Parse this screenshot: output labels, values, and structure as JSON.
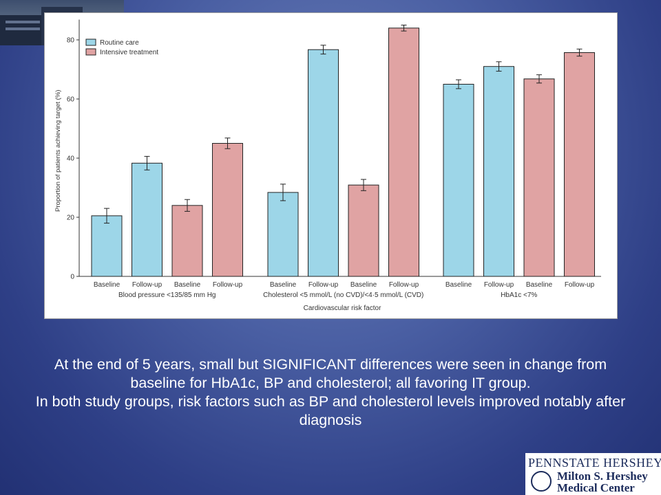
{
  "caption": {
    "line1": "At the end of 5 years, small but SIGNIFICANT differences were seen in change from baseline for HbA1c, BP and cholesterol; all favoring IT group.",
    "line2": "In both study groups, risk factors such as BP and cholesterol levels improved notably after diagnosis"
  },
  "logo": {
    "line1": "PENNSTATE HERSHEY",
    "line2": "Milton S. Hershey",
    "line3": "Medical Center"
  },
  "chart_data": {
    "type": "bar",
    "xlabel": "Cardiovascular risk factor",
    "ylabel": "Proportion of patients achieving target (%)",
    "ylim": [
      0,
      85
    ],
    "yticks": [
      0,
      20,
      40,
      60,
      80
    ],
    "legend": {
      "position": "top-left",
      "entries": [
        {
          "name": "Routine care",
          "color": "#9dd6e8"
        },
        {
          "name": "Intensive treatment",
          "color": "#e0a3a3"
        }
      ]
    },
    "groups": [
      {
        "label": "Blood pressure <135/85 mm Hg",
        "bars": [
          {
            "label": "Baseline",
            "series": "Routine care",
            "value": 20.5,
            "err": 2.5
          },
          {
            "label": "Follow-up",
            "series": "Routine care",
            "value": 38.3,
            "err": 2.3
          },
          {
            "label": "Baseline",
            "series": "Intensive treatment",
            "value": 24.0,
            "err": 2.0
          },
          {
            "label": "Follow-up",
            "series": "Intensive treatment",
            "value": 45.0,
            "err": 1.8
          }
        ]
      },
      {
        "label": "Cholesterol <5 mmol/L (no CVD)/<4·5 mmol/L (CVD)",
        "bars": [
          {
            "label": "Baseline",
            "series": "Routine care",
            "value": 28.4,
            "err": 2.8
          },
          {
            "label": "Follow-up",
            "series": "Routine care",
            "value": 76.7,
            "err": 1.5
          },
          {
            "label": "Baseline",
            "series": "Intensive treatment",
            "value": 30.9,
            "err": 1.9
          },
          {
            "label": "Follow-up",
            "series": "Intensive treatment",
            "value": 84.0,
            "err": 1.0
          }
        ]
      },
      {
        "label": "HbA1c <7%",
        "bars": [
          {
            "label": "Baseline",
            "series": "Routine care",
            "value": 65.0,
            "err": 1.5
          },
          {
            "label": "Follow-up",
            "series": "Routine care",
            "value": 71.0,
            "err": 1.6
          },
          {
            "label": "Baseline",
            "series": "Intensive treatment",
            "value": 66.8,
            "err": 1.4
          },
          {
            "label": "Follow-up",
            "series": "Intensive treatment",
            "value": 75.7,
            "err": 1.2
          }
        ]
      }
    ]
  }
}
